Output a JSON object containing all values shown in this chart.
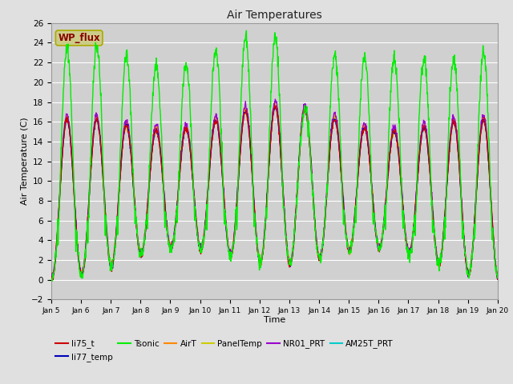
{
  "title": "Air Temperatures",
  "xlabel": "Time",
  "ylabel": "Air Temperature (C)",
  "ylim": [
    -2,
    26
  ],
  "yticks": [
    -2,
    0,
    2,
    4,
    6,
    8,
    10,
    12,
    14,
    16,
    18,
    20,
    22,
    24,
    26
  ],
  "fig_bg_color": "#e0e0e0",
  "plot_bg_color": "#d0d0d0",
  "grid_color": "#ffffff",
  "series_colors": {
    "li75_t": "#cc0000",
    "li77_temp": "#0000bb",
    "Tsonic": "#00ee00",
    "AirT": "#ff8800",
    "PanelTemp": "#cccc00",
    "NR01_PRT": "#9900cc",
    "AM25T_PRT": "#00cccc"
  },
  "wp_flux_box_facecolor": "#cccc88",
  "wp_flux_box_edgecolor": "#aaaa00",
  "wp_flux_text_color": "#880000",
  "xtick_labels": [
    "Jan 5",
    "Jan 6",
    "Jan 7",
    "Jan 8",
    "Jan 9",
    "Jan 10",
    "Jan 11",
    "Jan 12",
    "Jan 13",
    "Jan 14",
    "Jan 15",
    "Jan 16",
    "Jan 17",
    "Jan 18",
    "Jan 19",
    "Jan 20"
  ],
  "legend_row1": [
    "li75_t",
    "li77_temp",
    "Tsonic",
    "AirT",
    "PanelTemp",
    "NR01_PRT"
  ],
  "legend_row2": [
    "AM25T_PRT"
  ]
}
